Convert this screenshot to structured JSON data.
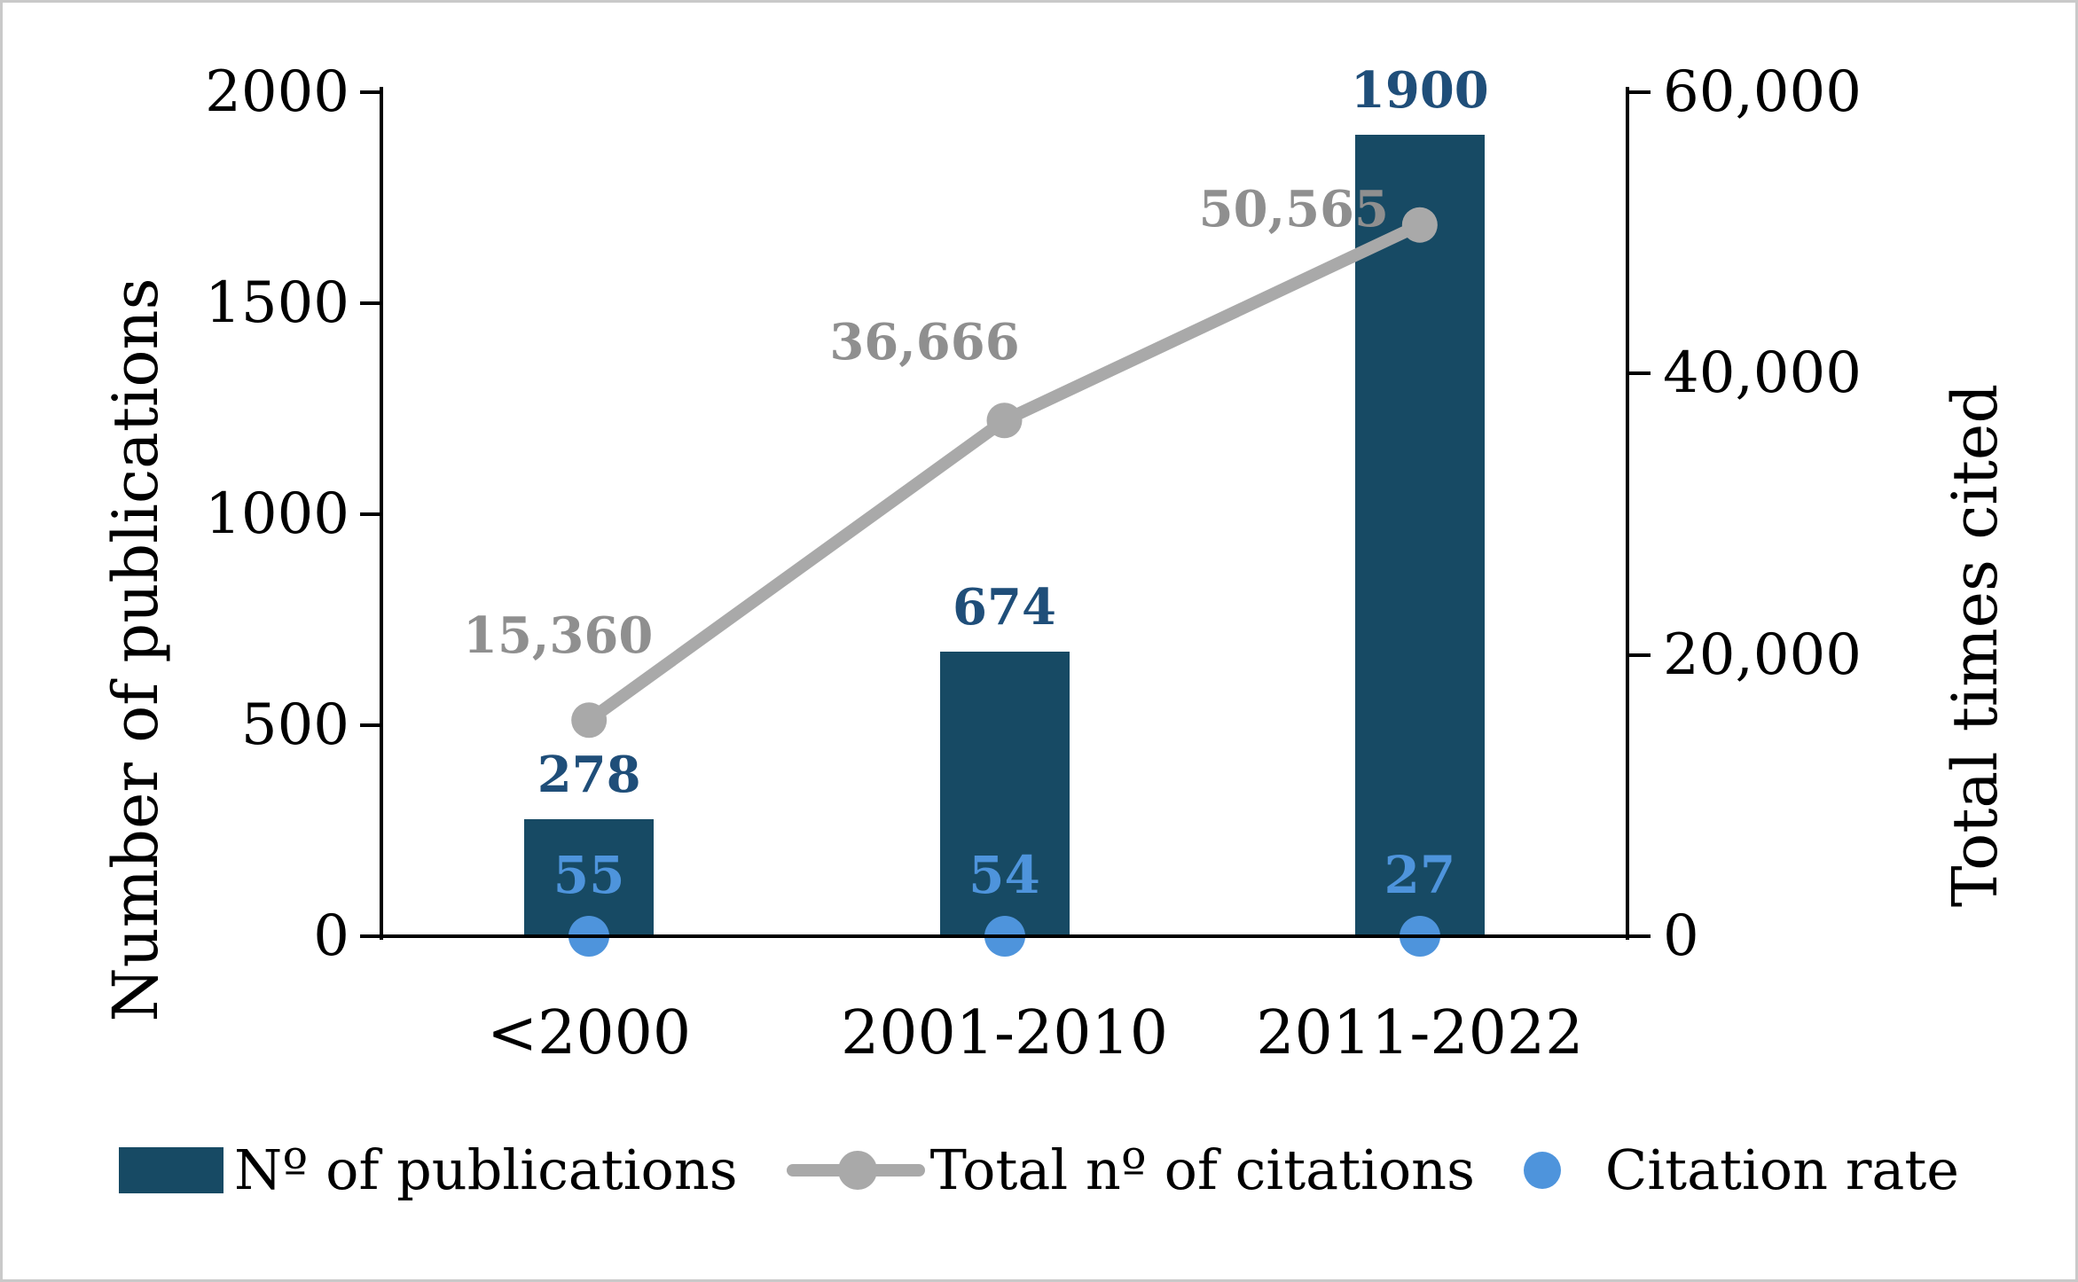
{
  "chart_data": {
    "type": "bar+line",
    "categories": [
      "<2000",
      "2001-2010",
      "2011-2022"
    ],
    "left_axis": {
      "title": "Number of publications",
      "min": 0,
      "max": 2000,
      "ticks": [
        {
          "value": 2000,
          "label": "2000"
        },
        {
          "value": 1500,
          "label": "1500"
        },
        {
          "value": 1000,
          "label": "1000"
        },
        {
          "value": 500,
          "label": "500"
        },
        {
          "value": 0,
          "label": "0"
        }
      ]
    },
    "right_axis": {
      "title": "Total times cited",
      "min": 0,
      "max": 60000,
      "ticks": [
        {
          "value": 60000,
          "label": "60,000"
        },
        {
          "value": 40000,
          "label": "40,000"
        },
        {
          "value": 20000,
          "label": "20,000"
        },
        {
          "value": 0,
          "label": "0"
        }
      ]
    },
    "series": [
      {
        "name": "Nº of publications",
        "type": "bar",
        "axis": "left",
        "color": "#174A64",
        "label_color": "#1F4E79",
        "values": [
          278,
          674,
          1900
        ],
        "labels": [
          "278",
          "674",
          "1900"
        ]
      },
      {
        "name": "Total nº of citations",
        "type": "line",
        "axis": "right",
        "color": "#A9A9A9",
        "label_color": "#8F8F8F",
        "values": [
          15360,
          36666,
          50565
        ],
        "labels": [
          "15,360",
          "36,666",
          "50,565"
        ]
      },
      {
        "name": "Citation rate",
        "type": "point",
        "axis": "left",
        "color": "#4E94DC",
        "label_color": "#4E94DC",
        "values": [
          55,
          54,
          27
        ],
        "labels": [
          "55",
          "54",
          "27"
        ]
      }
    ],
    "legend_position": "bottom",
    "grid": false
  },
  "colors": {
    "figure_border": "#c9c9c9",
    "axis": "#000000"
  }
}
